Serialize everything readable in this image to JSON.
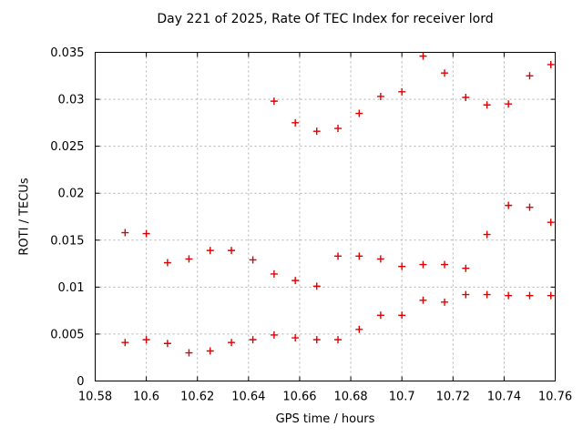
{
  "window": {
    "background": "#ffffff"
  },
  "chart_data": {
    "type": "scatter",
    "title": "Day 221 of 2025, Rate Of TEC Index for receiver lord",
    "xlabel": "GPS time / hours",
    "ylabel": "ROTI / TECUs",
    "xlim": [
      10.58,
      10.76
    ],
    "ylim": [
      0,
      0.035
    ],
    "xtick_values": [
      10.58,
      10.6,
      10.62,
      10.64,
      10.66,
      10.68,
      10.7,
      10.72,
      10.74,
      10.76
    ],
    "xtick_labels": [
      "10.58",
      "10.6",
      "10.62",
      "10.64",
      "10.66",
      "10.68",
      "10.7",
      "10.72",
      "10.74",
      "10.76"
    ],
    "ytick_values": [
      0,
      0.005,
      0.01,
      0.015,
      0.02,
      0.025,
      0.03,
      0.035
    ],
    "ytick_labels": [
      "0",
      "0.005",
      "0.01",
      "0.015",
      "0.02",
      "0.025",
      "0.03",
      "0.035"
    ],
    "grid": true,
    "legend": "none",
    "marker_shape": "plus",
    "marker_color": "#e00000",
    "grid_color": "#b0b0b0",
    "border_color": "#000000",
    "points": [
      [
        10.5917,
        0.0158
      ],
      [
        10.6,
        0.0157
      ],
      [
        10.6083,
        0.0126
      ],
      [
        10.6167,
        0.013
      ],
      [
        10.625,
        0.0139
      ],
      [
        10.6333,
        0.0139
      ],
      [
        10.6417,
        0.0129
      ],
      [
        10.65,
        0.0114
      ],
      [
        10.6583,
        0.0107
      ],
      [
        10.6667,
        0.0101
      ],
      [
        10.675,
        0.0133
      ],
      [
        10.6833,
        0.0133
      ],
      [
        10.6917,
        0.013
      ],
      [
        10.7,
        0.0122
      ],
      [
        10.7083,
        0.0124
      ],
      [
        10.7167,
        0.0124
      ],
      [
        10.725,
        0.012
      ],
      [
        10.7333,
        0.0156
      ],
      [
        10.7417,
        0.0187
      ],
      [
        10.75,
        0.0185
      ],
      [
        10.7583,
        0.0169
      ],
      [
        10.5917,
        0.0041
      ],
      [
        10.6,
        0.0044
      ],
      [
        10.6083,
        0.004
      ],
      [
        10.6167,
        0.003
      ],
      [
        10.625,
        0.0032
      ],
      [
        10.6333,
        0.0041
      ],
      [
        10.6417,
        0.0044
      ],
      [
        10.65,
        0.0049
      ],
      [
        10.6583,
        0.0046
      ],
      [
        10.6667,
        0.0044
      ],
      [
        10.675,
        0.0044
      ],
      [
        10.6833,
        0.0055
      ],
      [
        10.6917,
        0.007
      ],
      [
        10.7,
        0.007
      ],
      [
        10.7083,
        0.0086
      ],
      [
        10.7167,
        0.0084
      ],
      [
        10.725,
        0.0092
      ],
      [
        10.7333,
        0.0092
      ],
      [
        10.7417,
        0.0091
      ],
      [
        10.75,
        0.0091
      ],
      [
        10.7583,
        0.0091
      ],
      [
        10.65,
        0.0298
      ],
      [
        10.6583,
        0.0275
      ],
      [
        10.6667,
        0.0266
      ],
      [
        10.675,
        0.0269
      ],
      [
        10.6833,
        0.0285
      ],
      [
        10.6917,
        0.0303
      ],
      [
        10.7,
        0.0308
      ],
      [
        10.7083,
        0.0346
      ],
      [
        10.7167,
        0.0328
      ],
      [
        10.725,
        0.0302
      ],
      [
        10.7333,
        0.0294
      ],
      [
        10.7417,
        0.0295
      ],
      [
        10.75,
        0.0325
      ],
      [
        10.7583,
        0.0337
      ]
    ]
  }
}
